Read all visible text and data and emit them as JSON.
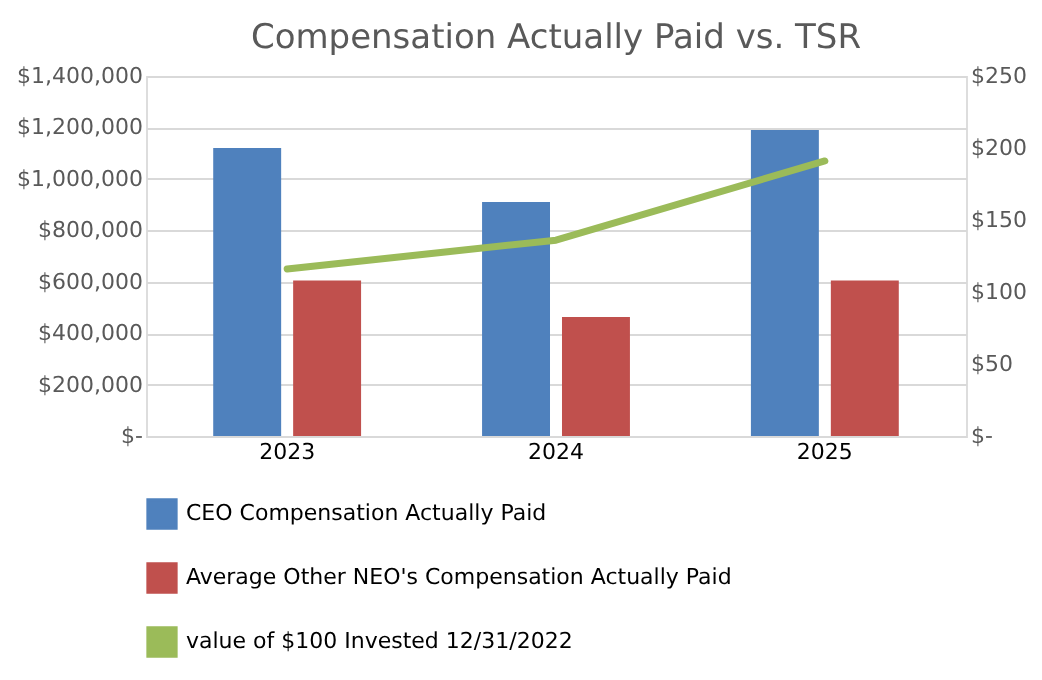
{
  "chart_data": {
    "type": "bar",
    "title": "Compensation Actually Paid vs. TSR",
    "categories": [
      "2023",
      "2024",
      "2025"
    ],
    "series": [
      {
        "name": "CEO Compensation Actually Paid",
        "color": "#4f81bd",
        "values": [
          1120000,
          910000,
          1190000
        ]
      },
      {
        "name": "Average Other NEO's Compensation Actually Paid",
        "color": "#c0504d",
        "values": [
          605000,
          463000,
          605000
        ]
      },
      {
        "name": "value of $100 Invested 12/31/2022",
        "color": "#9bbb59",
        "type": "line",
        "axis": "y2",
        "values": [
          116,
          136,
          191
        ]
      }
    ],
    "ylim": [
      0,
      1400000
    ],
    "yticks": [
      {
        "value": 0,
        "label": "$-"
      },
      {
        "value": 200000,
        "label": "$200,000"
      },
      {
        "value": 400000,
        "label": "$400,000"
      },
      {
        "value": 600000,
        "label": "$600,000"
      },
      {
        "value": 800000,
        "label": "$800,000"
      },
      {
        "value": 1000000,
        "label": "$1,000,000"
      },
      {
        "value": 1200000,
        "label": "$1,200,000"
      },
      {
        "value": 1400000,
        "label": "$1,400,000"
      }
    ],
    "y2lim": [
      0,
      250
    ],
    "y2ticks": [
      {
        "value": 0,
        "label": "$-"
      },
      {
        "value": 50,
        "label": "$50"
      },
      {
        "value": 100,
        "label": "$100"
      },
      {
        "value": 150,
        "label": "$150"
      },
      {
        "value": 200,
        "label": "$200"
      },
      {
        "value": 250,
        "label": "$250"
      }
    ],
    "grid": "y",
    "legend": "bottom",
    "line_style": "solid",
    "marker": "none"
  }
}
